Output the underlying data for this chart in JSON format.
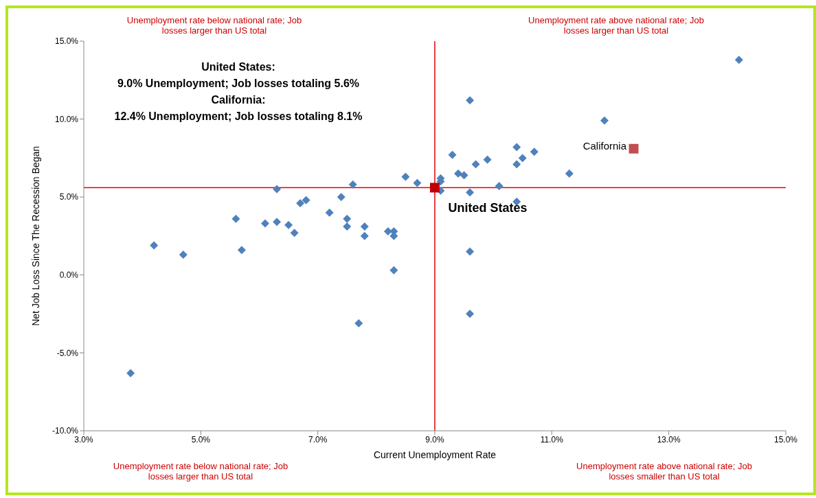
{
  "chart_data": {
    "type": "scatter",
    "xlabel": "Current Unemployment Rate",
    "ylabel": "Net Job Loss Since The Recession Began",
    "xlim": [
      3,
      15
    ],
    "ylim": [
      -10,
      15
    ],
    "xticks": [
      {
        "value": 3,
        "label": "3.0%"
      },
      {
        "value": 5,
        "label": "5.0%"
      },
      {
        "value": 7,
        "label": "7.0%"
      },
      {
        "value": 9,
        "label": "9.0%"
      },
      {
        "value": 11,
        "label": "11.0%"
      },
      {
        "value": 13,
        "label": "13.0%"
      },
      {
        "value": 15,
        "label": "15.0%"
      }
    ],
    "yticks": [
      {
        "value": -10,
        "label": "-10.0%"
      },
      {
        "value": -5,
        "label": "-5.0%"
      },
      {
        "value": 0,
        "label": "0.0%"
      },
      {
        "value": 5,
        "label": "5.0%"
      },
      {
        "value": 10,
        "label": "10.0%"
      },
      {
        "value": 15,
        "label": "15.0%"
      }
    ],
    "series": [
      {
        "color": "#4f81bd",
        "marker": "diamond",
        "x": [
          3.8,
          4.2,
          4.7,
          5.6,
          5.7,
          6.1,
          6.3,
          6.3,
          6.5,
          6.6,
          6.7,
          6.8,
          7.2,
          7.4,
          7.5,
          7.5,
          7.6,
          7.8,
          7.8,
          7.7,
          8.2,
          8.3,
          8.3,
          8.3,
          8.5,
          8.7,
          9.0,
          9.1,
          9.1,
          9.1,
          9.3,
          9.4,
          9.5,
          9.7,
          9.6,
          9.6,
          9.6,
          9.6,
          9.9,
          10.1,
          10.4,
          10.4,
          10.4,
          10.5,
          10.7,
          11.3,
          11.9,
          14.2
        ],
        "values": [
          -6.3,
          1.9,
          1.3,
          3.6,
          1.6,
          3.3,
          3.4,
          5.5,
          3.2,
          2.7,
          4.6,
          4.8,
          4.0,
          5.0,
          3.6,
          3.1,
          5.8,
          3.1,
          2.5,
          -3.1,
          2.8,
          2.8,
          2.5,
          0.3,
          6.3,
          5.9,
          null,
          6.2,
          6.0,
          5.4,
          7.7,
          6.5,
          6.4,
          7.1,
          11.2,
          5.3,
          1.5,
          -2.5,
          7.4,
          5.7,
          8.2,
          7.1,
          4.7,
          7.5,
          7.9,
          6.5,
          9.9,
          13.8
        ]
      },
      {
        "name": "United States",
        "color": "#c00000",
        "marker": "square",
        "x": [
          9.0
        ],
        "values": [
          5.6
        ]
      },
      {
        "name": "California",
        "color": "#c0504d",
        "marker": "square",
        "x": [
          12.4
        ],
        "values": [
          8.1
        ]
      }
    ],
    "ref_lines": [
      {
        "axis": "x",
        "value": 9.0,
        "color": "#e00000"
      },
      {
        "axis": "y",
        "value": 5.6,
        "color": "#e00000"
      }
    ],
    "annotations": [
      "Unemployment rate below national rate; Job losses larger than US total",
      "Unemployment rate above national rate; Job losses larger than US total",
      "Unemployment rate below national rate; Job losses larger than US total",
      "Unemployment rate above national rate; Job losses smaller than US total",
      "United States:\n9.0% Unemployment; Job losses totaling 5.6%\nCalifornia:\n12.4% Unemployment; Job losses totaling 8.1%"
    ]
  }
}
